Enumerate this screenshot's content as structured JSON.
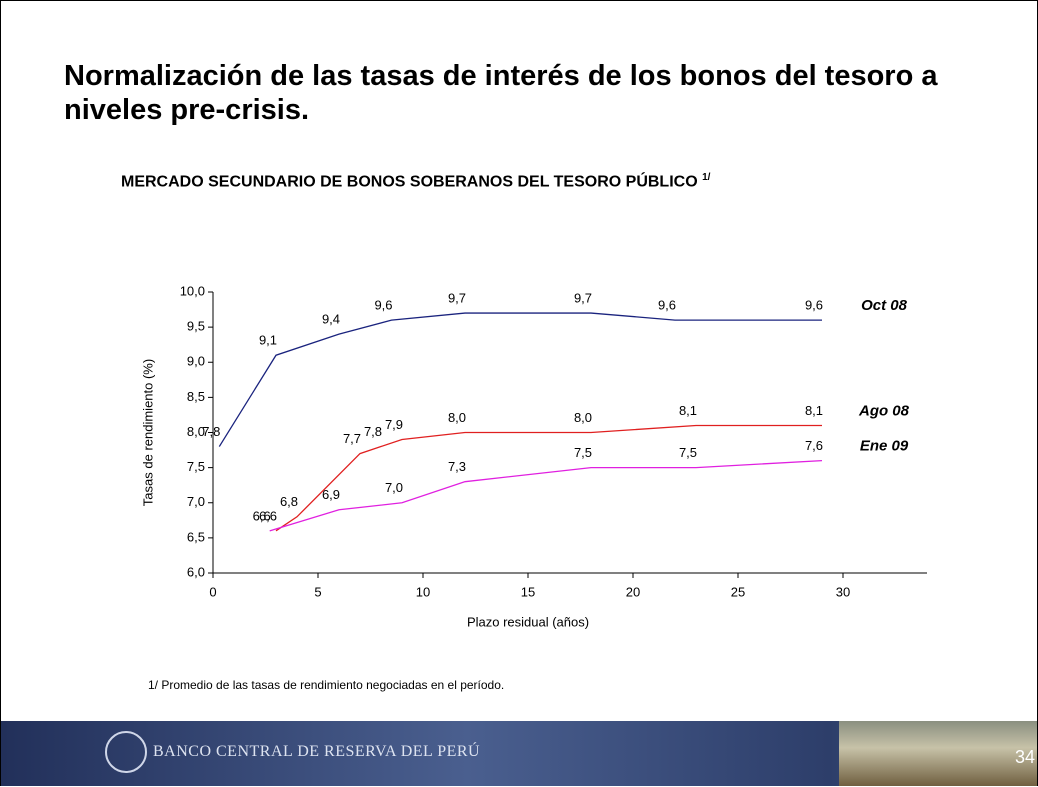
{
  "slide": {
    "title": "Normalización de las tasas de interés de los bonos del tesoro a niveles pre-crisis.",
    "footnote": "1/ Promedio de las tasas de rendimiento negociadas en el período.",
    "footer": "BANCO CENTRAL DE RESERVA DEL PERÚ",
    "page_number": "34"
  },
  "chart_data": {
    "type": "line",
    "title": "MERCADO SECUNDARIO DE BONOS SOBERANOS DEL TESORO PÚBLICO",
    "title_superscript": "1/",
    "x_label": "Plazo residual (años)",
    "y_label": "Tasas de rendimiento (%)",
    "xlim": [
      0,
      34
    ],
    "xticks": [
      0,
      5,
      10,
      15,
      20,
      25,
      30
    ],
    "ylim": [
      6,
      10
    ],
    "yticks": [
      {
        "value": 6,
        "label": "6,0"
      },
      {
        "value": 6.5,
        "label": "6,5"
      },
      {
        "value": 7,
        "label": "7,0"
      },
      {
        "value": 7.5,
        "label": "7,5"
      },
      {
        "value": 8,
        "label": "8,0"
      },
      {
        "value": 8.5,
        "label": "8,5"
      },
      {
        "value": 9,
        "label": "9,0"
      },
      {
        "value": 9.5,
        "label": "9,5"
      },
      {
        "value": 10,
        "label": "10,0"
      }
    ],
    "series": [
      {
        "name": "Oct 08",
        "color": "#1a237e",
        "x": [
          0.3,
          3,
          6,
          8.5,
          12,
          18,
          22,
          29
        ],
        "values": [
          7.8,
          9.1,
          9.4,
          9.6,
          9.7,
          9.7,
          9.6,
          9.6
        ],
        "value_labels": [
          "7,8",
          "9,1",
          "9,4",
          "9,6",
          "9,7",
          "9,7",
          "9,6",
          "9,6"
        ]
      },
      {
        "name": "Ago 08",
        "color": "#e02020",
        "x": [
          3,
          4,
          7,
          8,
          9,
          12,
          18,
          23,
          29
        ],
        "values": [
          6.6,
          6.8,
          7.7,
          7.8,
          7.9,
          8.0,
          8.0,
          8.1,
          8.1
        ],
        "value_labels": [
          "6,6",
          "6,8",
          "7,7",
          "7,8",
          "7,9",
          "8,0",
          "8,0",
          "8,1",
          "8,1"
        ]
      },
      {
        "name": "Ene 09",
        "color": "#e020e0",
        "x": [
          2.7,
          6,
          9,
          12,
          18,
          23,
          29
        ],
        "values": [
          6.6,
          6.9,
          7.0,
          7.3,
          7.5,
          7.5,
          7.6
        ],
        "value_labels": [
          "6,6",
          "6,9",
          "7,0",
          "7,3",
          "7,5",
          "7,5",
          "7,6"
        ]
      }
    ]
  }
}
